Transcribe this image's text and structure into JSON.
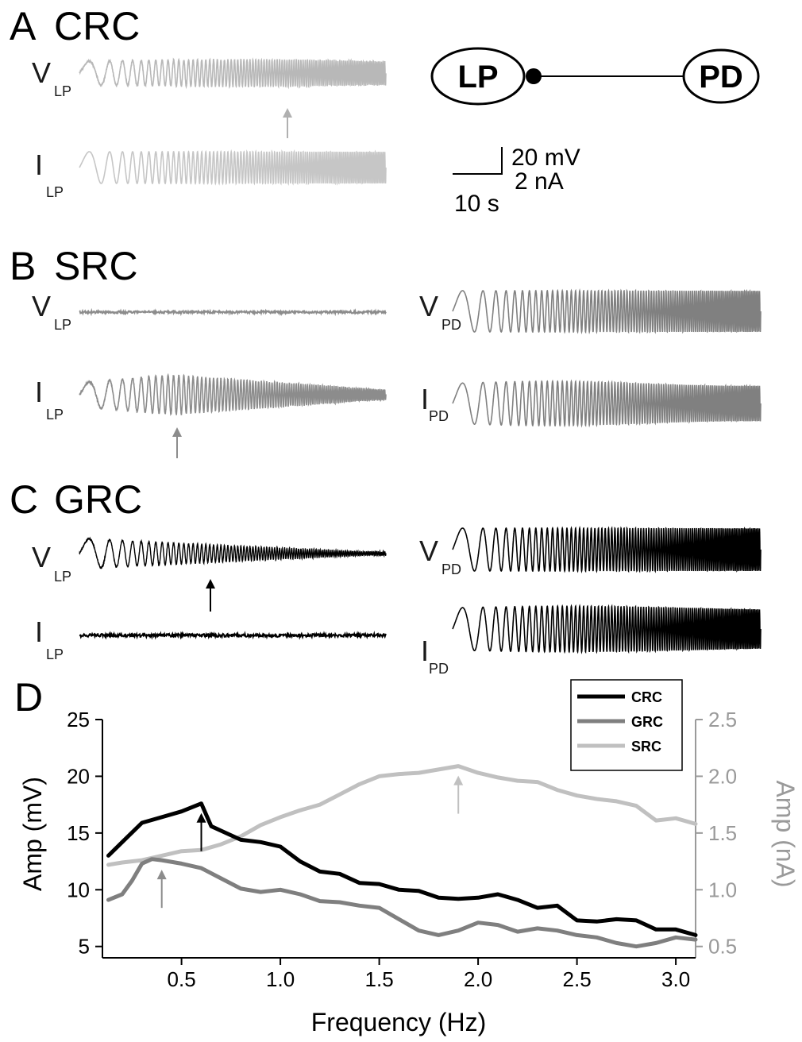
{
  "colors": {
    "crc": "#000000",
    "grc": "#7f7f7f",
    "src": "#c0c0c0",
    "right_axis": "#9a9a9a"
  },
  "panels": {
    "a": {
      "letter": "A",
      "name": "CRC"
    },
    "b": {
      "letter": "B",
      "name": "SRC"
    },
    "c": {
      "letter": "C",
      "name": "GRC"
    },
    "d": {
      "letter": "D"
    }
  },
  "trace_labels": {
    "v": "V",
    "i": "I",
    "lp": "LP",
    "pd": "PD"
  },
  "diagram": {
    "left_cell": "LP",
    "right_cell": "PD"
  },
  "scale_bar": {
    "voltage": "20 mV",
    "current": "2 nA",
    "time": "10 s"
  },
  "chart_data": {
    "type": "line",
    "xlabel": "Frequency (Hz)",
    "ylabel": "Amp (mV)",
    "y2label": "Amp (nA)",
    "xlim": [
      0.1,
      3.1
    ],
    "ylim": [
      4,
      25
    ],
    "y2lim": [
      0.4,
      2.5
    ],
    "xticks": [
      "0.5",
      "1.0",
      "1.5",
      "2.0",
      "2.5",
      "3.0"
    ],
    "yticks": [
      "5",
      "10",
      "15",
      "20",
      "25"
    ],
    "y2ticks": [
      "0.5",
      "1.0",
      "1.5",
      "2.0",
      "2.5"
    ],
    "legend_position": "top-right",
    "series": [
      {
        "name": "CRC",
        "axis": "left",
        "x": [
          0.13,
          0.2,
          0.3,
          0.4,
          0.5,
          0.6,
          0.65,
          0.7,
          0.8,
          0.9,
          1.0,
          1.1,
          1.2,
          1.3,
          1.4,
          1.5,
          1.6,
          1.7,
          1.8,
          1.9,
          2.0,
          2.1,
          2.2,
          2.3,
          2.4,
          2.5,
          2.6,
          2.7,
          2.8,
          2.9,
          3.0,
          3.1
        ],
        "y": [
          13.0,
          14.2,
          15.9,
          16.4,
          16.9,
          17.6,
          15.6,
          15.2,
          14.4,
          14.2,
          13.8,
          12.5,
          11.6,
          11.4,
          10.6,
          10.5,
          10.0,
          9.9,
          9.3,
          9.2,
          9.3,
          9.6,
          9.1,
          8.4,
          8.6,
          7.3,
          7.2,
          7.4,
          7.3,
          6.5,
          6.5,
          6.0
        ]
      },
      {
        "name": "GRC",
        "axis": "left",
        "x": [
          0.13,
          0.2,
          0.25,
          0.3,
          0.35,
          0.4,
          0.5,
          0.6,
          0.7,
          0.8,
          0.9,
          1.0,
          1.1,
          1.2,
          1.3,
          1.4,
          1.5,
          1.6,
          1.7,
          1.8,
          1.9,
          2.0,
          2.1,
          2.2,
          2.3,
          2.4,
          2.5,
          2.6,
          2.7,
          2.8,
          2.9,
          3.0,
          3.1
        ],
        "y": [
          9.1,
          9.6,
          10.8,
          12.3,
          12.7,
          12.6,
          12.3,
          11.9,
          11.0,
          10.1,
          9.8,
          10.0,
          9.6,
          9.0,
          8.9,
          8.6,
          8.4,
          7.4,
          6.4,
          6.0,
          6.4,
          7.1,
          6.9,
          6.3,
          6.6,
          6.4,
          6.0,
          5.8,
          5.3,
          5.0,
          5.3,
          5.8,
          5.6
        ]
      },
      {
        "name": "SRC",
        "axis": "right",
        "x": [
          0.13,
          0.2,
          0.3,
          0.4,
          0.5,
          0.6,
          0.7,
          0.8,
          0.9,
          1.0,
          1.1,
          1.2,
          1.3,
          1.4,
          1.5,
          1.6,
          1.7,
          1.8,
          1.9,
          2.0,
          2.1,
          2.2,
          2.3,
          2.4,
          2.5,
          2.6,
          2.7,
          2.8,
          2.9,
          3.0,
          3.1
        ],
        "y": [
          1.22,
          1.24,
          1.26,
          1.3,
          1.34,
          1.35,
          1.4,
          1.47,
          1.57,
          1.64,
          1.7,
          1.75,
          1.84,
          1.93,
          2.0,
          2.02,
          2.03,
          2.06,
          2.09,
          2.03,
          1.99,
          1.96,
          1.95,
          1.88,
          1.83,
          1.8,
          1.78,
          1.74,
          1.61,
          1.63,
          1.58
        ]
      }
    ],
    "annotations": [
      {
        "type": "arrow",
        "series": "CRC",
        "x": 0.6
      },
      {
        "type": "arrow",
        "series": "GRC",
        "x": 0.4
      },
      {
        "type": "arrow",
        "series": "SRC",
        "x": 1.9
      }
    ]
  }
}
